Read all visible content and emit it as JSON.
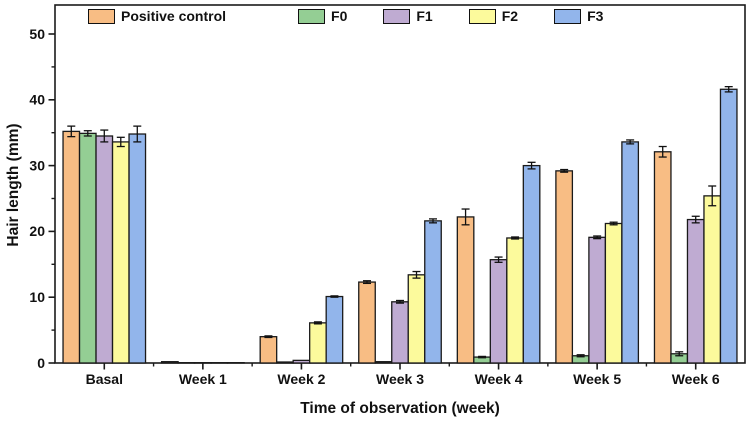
{
  "figure": {
    "background_color": "#ffffff",
    "frame_color": "#1a1a1a"
  },
  "chart_data": {
    "type": "bar",
    "title": "",
    "xlabel": "Time of observation (week)",
    "ylabel": "Hair length (mm)",
    "categories": [
      "Basal",
      "Week 1",
      "Week 2",
      "Week 3",
      "Week 4",
      "Week 5",
      "Week 6"
    ],
    "ylim": [
      0,
      54
    ],
    "yticks_major": [
      0,
      10,
      20,
      30,
      40,
      50
    ],
    "yticks_minor": [
      5,
      15,
      25,
      35,
      45
    ],
    "grid": false,
    "legend_position": "top-inside-horizontal",
    "bar_border_color": "#1a1a1a",
    "error_bar_color": "#111111",
    "series": [
      {
        "name": "Positive control",
        "color": "#F8BD84",
        "values": [
          35.2,
          0.2,
          4.0,
          12.3,
          22.2,
          29.2,
          32.1
        ],
        "errors": [
          0.8,
          0.05,
          0.12,
          0.2,
          1.2,
          0.2,
          0.8
        ]
      },
      {
        "name": "F0",
        "color": "#94CE94",
        "values": [
          34.9,
          0.05,
          0.15,
          0.2,
          0.9,
          1.1,
          1.4
        ],
        "errors": [
          0.4,
          0,
          0.05,
          0.05,
          0.1,
          0.15,
          0.3
        ]
      },
      {
        "name": "F1",
        "color": "#BFABD2",
        "values": [
          34.5,
          0.05,
          0.4,
          9.3,
          15.7,
          19.1,
          21.8
        ],
        "errors": [
          0.9,
          0,
          0.05,
          0.2,
          0.4,
          0.2,
          0.5
        ]
      },
      {
        "name": "F2",
        "color": "#FCFA9C",
        "values": [
          33.6,
          0.05,
          6.1,
          13.4,
          19.0,
          21.2,
          25.4
        ],
        "errors": [
          0.7,
          0,
          0.15,
          0.5,
          0.15,
          0.2,
          1.5
        ]
      },
      {
        "name": "F3",
        "color": "#92B5EB",
        "values": [
          34.8,
          0.05,
          10.1,
          21.6,
          30.0,
          33.6,
          41.6
        ],
        "errors": [
          1.2,
          0,
          0.1,
          0.3,
          0.5,
          0.3,
          0.4
        ]
      }
    ]
  }
}
